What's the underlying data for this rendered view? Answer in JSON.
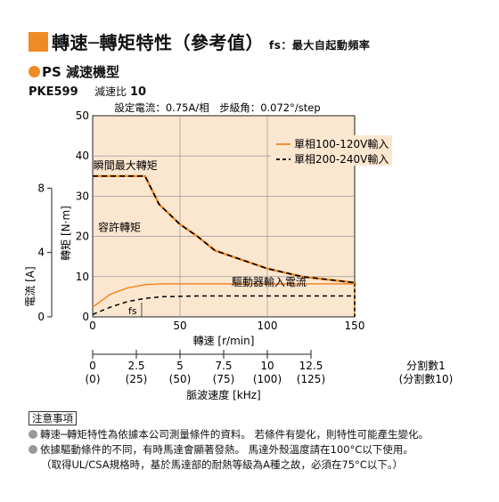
{
  "header": {
    "title": "轉速─轉矩特性（參考值）",
    "title_suffix": "fs：最大自起動頻率",
    "accent_color": "#f08a24"
  },
  "subtitle": "PS 減速機型",
  "model": {
    "name": "PKE599",
    "ratio_label": "減速比",
    "ratio_value": "10"
  },
  "chart_data": {
    "type": "line",
    "settings_text": "設定電流：0.75A/相　步級角：0.072°/step",
    "x_axis": {
      "label": "轉速 [r/min]",
      "range": [
        0,
        150
      ],
      "ticks": [
        0,
        50,
        100,
        150
      ]
    },
    "y_axis": {
      "label": "轉矩 [N·m]",
      "range": [
        0,
        50
      ],
      "ticks": [
        0,
        10,
        20,
        30,
        40,
        50
      ]
    },
    "y2_axis": {
      "label": "電流 [A]",
      "range": [
        0,
        12.5
      ],
      "ticks": [
        0,
        4,
        8
      ]
    },
    "grid": true,
    "background": "#fbe6d0",
    "series": [
      {
        "name": "單相100-120V輸入",
        "style": "solid",
        "color": "#f08a24",
        "x": [
          0,
          30,
          38,
          50,
          60,
          70,
          80,
          100,
          120,
          150
        ],
        "y": [
          35,
          35,
          28,
          23,
          20,
          16.5,
          15,
          12,
          10,
          8.5
        ]
      },
      {
        "name": "單相200-240V輸入",
        "style": "dashed",
        "color": "#000000",
        "x": [
          0,
          30,
          38,
          50,
          60,
          70,
          80,
          100,
          120,
          150
        ],
        "y": [
          35,
          35,
          28,
          23,
          20,
          16.5,
          15,
          12,
          10,
          8.5
        ]
      }
    ],
    "current_series": [
      {
        "name": "單相100-120V輸入",
        "style": "solid",
        "color": "#f08a24",
        "x": [
          0,
          10,
          20,
          30,
          40,
          60,
          80,
          100,
          120,
          150
        ],
        "y": [
          0.6,
          1.4,
          1.8,
          2.0,
          2.05,
          2.05,
          2.05,
          2.05,
          2.05,
          2.05
        ]
      },
      {
        "name": "單相200-240V輸入",
        "style": "dashed",
        "color": "#000000",
        "x": [
          0,
          10,
          20,
          30,
          40,
          60,
          80,
          100,
          120,
          150
        ],
        "y": [
          0.15,
          0.6,
          0.95,
          1.15,
          1.25,
          1.3,
          1.3,
          1.3,
          1.3,
          1.3
        ]
      }
    ],
    "annotations": [
      {
        "text": "瞬間最大轉矩",
        "x": 30,
        "y": 35
      },
      {
        "text": "容許轉矩",
        "x": 60,
        "y": 20
      },
      {
        "text": "fs",
        "x": 26,
        "y": 0
      },
      {
        "text": "驅動器輸入電流",
        "x": 100,
        "y": 1.5
      }
    ],
    "pulse_axis": {
      "label": "脈波速度 [kHz]",
      "ticks": [
        {
          "top": "0",
          "bottom": "(0)"
        },
        {
          "top": "2.5",
          "bottom": "(25)"
        },
        {
          "top": "5",
          "bottom": "(50)"
        },
        {
          "top": "7.5",
          "bottom": "(75)"
        },
        {
          "top": "10",
          "bottom": "(100)"
        },
        {
          "top": "12.5",
          "bottom": "(125)"
        }
      ],
      "top_caption": "分割數1",
      "bottom_caption": "(分割數10)"
    }
  },
  "notes": {
    "title": "注意事項",
    "items": [
      "轉速─轉矩特性為依據本公司測量條件的資料。 若條件有變化，則特性可能產生變化。",
      "依據驅動條件的不同，有時馬達會顯著發熱。 馬達外殼溫度請在100°C以下使用。",
      "（取得UL/CSA規格時，基於馬達部的耐熱等級為A種之故，必須在75°C以下。）"
    ]
  }
}
